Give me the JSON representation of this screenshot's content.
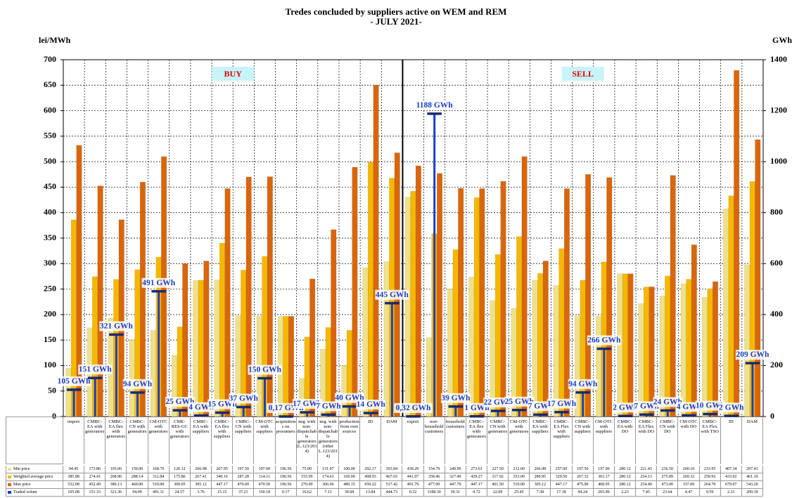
{
  "chart_data": {
    "type": "bar",
    "title": "Tredes concluded by suppliers active on WEM and REM",
    "subtitle": "- JULY 2021-",
    "y_label": "lei/MWh",
    "y2_label": "GWh",
    "annotations": [
      "BUY",
      "SELL"
    ],
    "categories": [
      "import",
      "CMBC-EA with generators",
      "CMBC-EA flex with generators",
      "CMBC-CN with generators",
      "CM-OTC with generators",
      "CME-RES-GC with generators",
      "CMBC-EA with suppliers",
      "CMBC-EA flex with suppliers",
      "CMBC-CN with suppliers",
      "CM-OTC with suppliers",
      "acquisitions on prosumers",
      "neg. with non-dispatchable generators (L.123/2014)",
      "neg. with non-dispatchable generators (other L.123/2014)",
      "production from own sources",
      "ID",
      "DAM",
      "export",
      "non-household customers",
      "household customers",
      "CMBC-EA flex with generators",
      "CMBC-CN with generators",
      "CM-OTC with generators",
      "CMBC-EA with suppliers",
      "CMBC-EA Flex with suppliers",
      "CMBC-CN with suppliers",
      "CM-OTC with suppliers",
      "CMBC-EA with DO",
      "CMBC-EA Flex with DO",
      "CMBC-CN with DO",
      "CM-OTC with DO",
      "CMBC-EA Flex with TSO",
      "ID",
      "DAM"
    ],
    "ylim": [
      0,
      700
    ],
    "yticks": [
      0,
      50,
      100,
      150,
      200,
      250,
      300,
      350,
      400,
      450,
      500,
      550,
      600,
      650,
      700
    ],
    "y2lim": [
      0,
      1400
    ],
    "y2ticks": [
      0,
      200,
      400,
      600,
      800,
      1000,
      1200,
      1400
    ],
    "grid": true,
    "series": [
      {
        "name": "Min price",
        "color": "#efe08a",
        "values": [
          94.45,
          173.86,
          193.06,
          150.0,
          168.7,
          120.12,
          266.98,
          267.95,
          197.5,
          197.0,
          196.56,
          75.0,
          131.97,
          100.0,
          292.17,
          303.84,
          430.29,
          154.79,
          249.99,
          273.61,
          227.5,
          212.0,
          266.98,
          257.0,
          197.5,
          197.0,
          280.12,
          221.43,
          236.5,
          260.1,
          233.95,
          407.34,
          297.41
        ],
        "table_labels": [
          "94.45",
          "173.86",
          "193.06",
          "150.00",
          "168.70",
          "120.12",
          "266.98",
          "267.95",
          "197.50",
          "197.00",
          "196.56",
          "75.00",
          "131.97",
          "100.00",
          "292.17",
          "303.84",
          "430.29",
          "154.79",
          "249.99",
          "273.61",
          "227.50",
          "212.00",
          "266.98",
          "257.00",
          "197.50",
          "197.00",
          "280.12",
          "221.43",
          "236.50",
          "260.10",
          "233.95",
          "407.34",
          "297.41"
        ]
      },
      {
        "name": "Weighted average price",
        "color": "#f5b800",
        "values": [
          385.88,
          274.41,
          268.96,
          288.14,
          312.84,
          175.86,
          267.41,
          340.16,
          287.28,
          314.11,
          196.56,
          155.99,
          174.63,
          169.0,
          498.93,
          467.65,
          441.97,
          358.46,
          327.49,
          429.27,
          317.92,
          353.0,
          280.95,
          329.5,
          267.32,
          303.17,
          280.12,
          254.13,
          275.89,
          269.32,
          250.92,
          433.02,
          461.1
        ],
        "table_labels": [
          "385.88",
          "274.41",
          "268.96",
          "288.14",
          "312.84",
          "175.86",
          "267.41",
          "340.16",
          "287.28",
          "314.11",
          "196.56",
          "155.99",
          "174.63",
          "169.00",
          "498.93",
          "467.65",
          "441.97",
          "358.46",
          "327.49",
          "429.27",
          "317.92",
          "353.00",
          "280.95",
          "329.50",
          "267.32",
          "303.17",
          "280.12",
          "254.13",
          "275.89",
          "269.32",
          "250.92",
          "433.02",
          "461.10"
        ]
      },
      {
        "name": "Max price",
        "color": "#d9660c",
        "values": [
          532.08,
          452.49,
          386.13,
          460.0,
          510.0,
          300.05,
          305.12,
          447.17,
          470.0,
          470.5,
          196.56,
          270.0,
          366.66,
          489.15,
          650.22,
          517.42,
          491.79,
          477.0,
          447.7,
          447.17,
          461.5,
          510.0,
          305.12,
          447.17,
          475.0,
          468.95,
          280.12,
          254.4,
          473.0,
          337.0,
          264.7,
          679.07,
          543.2
        ],
        "table_labels": [
          "532.08",
          "452.49",
          "386.13",
          "460.00",
          "510.00",
          "300.05",
          "305.12",
          "447.17",
          "470.00",
          "470.50",
          "196.56",
          "270.00",
          "366.66",
          "489.15",
          "650.22",
          "517.42",
          "491.79",
          "477.00",
          "447.70",
          "447.17",
          "461.50",
          "510.00",
          "305.12",
          "447.17",
          "475.00",
          "468.95",
          "280.12",
          "254.40",
          "473.00",
          "337.00",
          "264.70",
          "679.07",
          "543.20"
        ]
      },
      {
        "name": "Traded volum",
        "color": "#1a3fc8",
        "axis": "y2",
        "values": [
          105.08,
          151.33,
          321.36,
          94.09,
          491.11,
          24.57,
          3.76,
          15.15,
          37.21,
          150.18,
          0.17,
          16.62,
          7.13,
          39.68,
          13.84,
          444.73,
          0.32,
          1188.3,
          39.31,
          0.72,
          22.09,
          25.45,
          7.38,
          17.38,
          94.24,
          265.9,
          2.23,
          7.45,
          23.64,
          4.47,
          9.59,
          2.31,
          209.39
        ],
        "value_labels": [
          "105 GWh",
          "151 GWh",
          "321 GWh",
          "94 GWh",
          "491 GWh",
          "25 GWh",
          "4 GWh",
          "15 GWh",
          "37 GWh",
          "150 GWh",
          "0,17 GWh",
          "17 GWh",
          "7 GWh",
          "40 GWh",
          "14 GWh",
          "445 GWh",
          "0,32 GWh",
          "1188 GWh",
          "39 GWh",
          "1 GWh",
          "22 GWh",
          "25 GWh",
          "7 GWh",
          "17 GWh",
          "94 GWh",
          "266 GWh",
          "2 GWh",
          "7 GWh",
          "24 GWh",
          "4 GWh",
          "10 GWh",
          "2 GWh",
          "209 GWh"
        ],
        "table_labels": [
          "105.08",
          "151.33",
          "321.36",
          "94.09",
          "491.11",
          "24.57",
          "3.76",
          "15.15",
          "37.21",
          "150.18",
          "0.17",
          "16.62",
          "7.13",
          "39.68",
          "13.84",
          "444.73",
          "0.32",
          "1188.30",
          "39.31",
          "0.72",
          "22.09",
          "25.45",
          "7.38",
          "17.38",
          "94.24",
          "265.90",
          "2.23",
          "7.45",
          "23.64",
          "4.47",
          "9.59",
          "2.31",
          "209.39"
        ]
      }
    ]
  }
}
